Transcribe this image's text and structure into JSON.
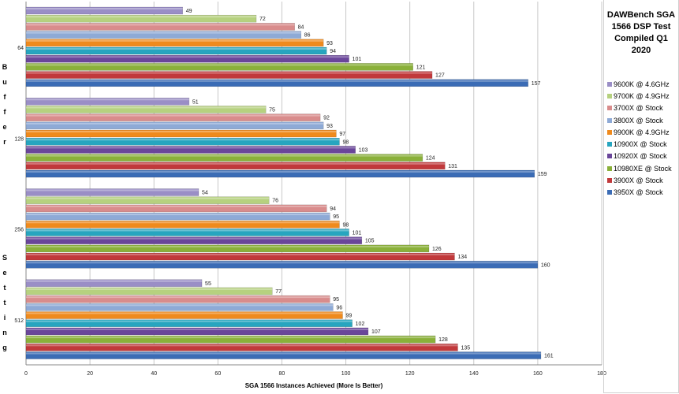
{
  "chart_data": {
    "type": "bar",
    "orientation": "horizontal",
    "title": "DAWBench SGA\n1566 DSP Test\nCompiled Q1 2020",
    "xlabel": "SGA 1566 Instances Achieved (More Is Better)",
    "ylabel": "Buffer Setting",
    "ylabel_parts": [
      "Buffer",
      "Setting"
    ],
    "xlim": [
      0,
      180
    ],
    "xticks": [
      0,
      20,
      40,
      60,
      80,
      100,
      120,
      140,
      160,
      180
    ],
    "grid": true,
    "legend_position": "right",
    "categories": [
      "64",
      "128",
      "256",
      "512"
    ],
    "series": [
      {
        "name": "9600K @ 4.6GHz",
        "color": "#9a8ec6",
        "values": [
          49,
          51,
          54,
          55
        ]
      },
      {
        "name": "9700K @ 4.9GHz",
        "color": "#b6d17f",
        "values": [
          72,
          75,
          76,
          77
        ]
      },
      {
        "name": "3700X @ Stock",
        "color": "#d98c8c",
        "values": [
          84,
          92,
          94,
          95
        ]
      },
      {
        "name": "3800X @ Stock",
        "color": "#8eaad6",
        "values": [
          86,
          93,
          95,
          96
        ]
      },
      {
        "name": "9900K @ 4.9GHz",
        "color": "#ef8a1d",
        "values": [
          93,
          97,
          98,
          99
        ]
      },
      {
        "name": "10900X @ Stock",
        "color": "#27a5bf",
        "values": [
          94,
          98,
          101,
          102
        ]
      },
      {
        "name": "10920X @ Stock",
        "color": "#6a469a",
        "values": [
          101,
          103,
          105,
          107
        ]
      },
      {
        "name": "10980XE @ Stock",
        "color": "#8ab03a",
        "values": [
          121,
          124,
          126,
          128
        ]
      },
      {
        "name": "3900X @ Stock",
        "color": "#c1393b",
        "values": [
          127,
          131,
          134,
          135
        ]
      },
      {
        "name": "3950X @ Stock",
        "color": "#3b6cb5",
        "values": [
          157,
          159,
          160,
          161
        ]
      }
    ]
  }
}
